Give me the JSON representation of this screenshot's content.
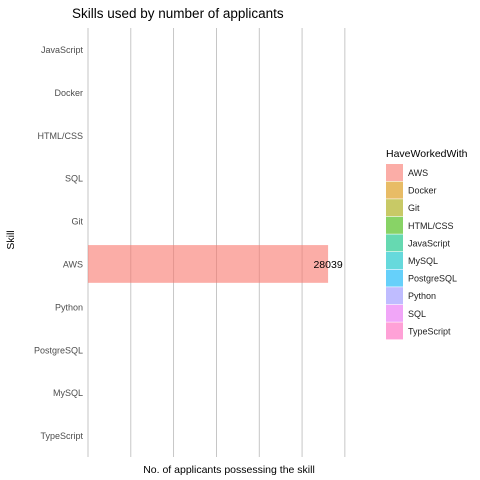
{
  "chart_data": {
    "type": "bar",
    "orientation": "horizontal",
    "title": "Skills used by number of applicants",
    "xlabel": "No. of applicants possessing the skill",
    "ylabel": "Skill",
    "categories": [
      "JavaScript",
      "Docker",
      "HTML/CSS",
      "SQL",
      "Git",
      "AWS",
      "Python",
      "PostgreSQL",
      "MySQL",
      "TypeScript"
    ],
    "values": [
      null,
      null,
      null,
      null,
      null,
      28039,
      null,
      null,
      null,
      null
    ],
    "data_labels": [
      {
        "category": "AWS",
        "text": "28039"
      }
    ],
    "xlim": [
      0,
      32000
    ],
    "x_gridlines": [
      0,
      5000,
      10000,
      15000,
      20000,
      25000,
      30000
    ],
    "x_tick_labels_shown": false,
    "grid": true,
    "legend": {
      "title": "HaveWorkedWith",
      "position": "right",
      "entries": [
        {
          "label": "AWS",
          "color": "#F8766D"
        },
        {
          "label": "Docker",
          "color": "#D89000"
        },
        {
          "label": "Git",
          "color": "#A3A500"
        },
        {
          "label": "HTML/CSS",
          "color": "#39B600"
        },
        {
          "label": "JavaScript",
          "color": "#00BF7D"
        },
        {
          "label": "MySQL",
          "color": "#00BFC4"
        },
        {
          "label": "PostgreSQL",
          "color": "#00B0F6"
        },
        {
          "label": "Python",
          "color": "#9590FF"
        },
        {
          "label": "SQL",
          "color": "#E76BF3"
        },
        {
          "label": "TypeScript",
          "color": "#FF62BC"
        }
      ]
    },
    "bar_fill_opacity": 0.6
  }
}
